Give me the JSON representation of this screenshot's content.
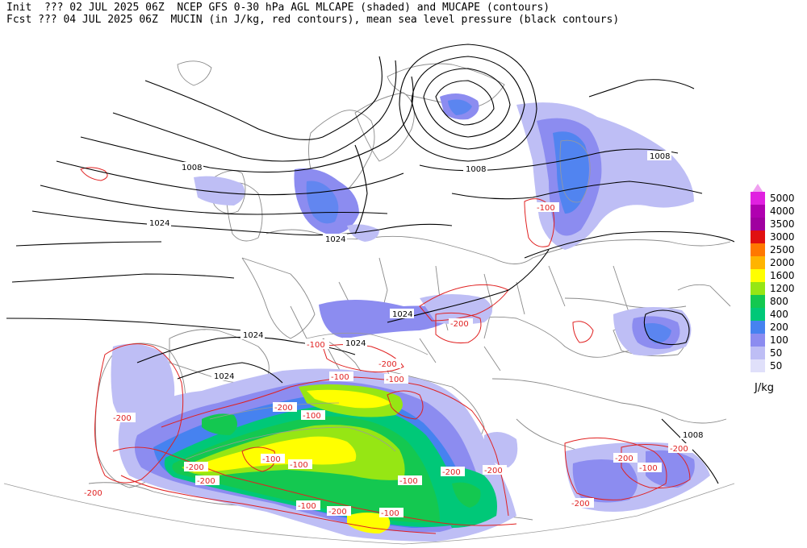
{
  "header": {
    "line1": "Init  ??? 02 JUL 2025 06Z  NCEP GFS 0-30 hPa AGL MLCAPE (shaded) and MUCAPE (contours)",
    "line2": "Fcst ??? 04 JUL 2025 06Z  MUCIN (in J/kg, red contours), mean sea level pressure (black contours)"
  },
  "legend": {
    "units": "J/kg",
    "items": [
      {
        "label": "5000",
        "color": "#f0a0f0"
      },
      {
        "label": "4000",
        "color": "#e020e0"
      },
      {
        "label": "3500",
        "color": "#a000a0"
      },
      {
        "label": "3000",
        "color": "#e01010"
      },
      {
        "label": "2500",
        "color": "#ff7800"
      },
      {
        "label": "2000",
        "color": "#ffb400"
      },
      {
        "label": "1600",
        "color": "#ffff00"
      },
      {
        "label": "1200",
        "color": "#96e614"
      },
      {
        "label": "800",
        "color": "#14c850"
      },
      {
        "label": "400",
        "color": "#00c878"
      },
      {
        "label": "200",
        "color": "#4682f0"
      },
      {
        "label": "100",
        "color": "#8c8cf0"
      },
      {
        "label": "50",
        "color": "#bebef5"
      }
    ],
    "extra_bottom": {
      "label": "50",
      "color": "#e0e0fa"
    }
  },
  "pressure_labels": [
    {
      "text": "1008"
    },
    {
      "text": "1024"
    },
    {
      "text": "1024"
    },
    {
      "text": "1008"
    },
    {
      "text": "1008"
    },
    {
      "text": "1024"
    },
    {
      "text": "1024"
    },
    {
      "text": "1024"
    },
    {
      "text": "1024"
    },
    {
      "text": "1008"
    }
  ],
  "cin_labels": [
    {
      "text": "-100"
    },
    {
      "text": "-200"
    },
    {
      "text": "-100"
    },
    {
      "text": "-200"
    },
    {
      "text": "-100"
    },
    {
      "text": "-100"
    },
    {
      "text": "-200"
    },
    {
      "text": "-200"
    },
    {
      "text": "-100"
    },
    {
      "text": "-200"
    },
    {
      "text": "-200"
    },
    {
      "text": "-100"
    },
    {
      "text": "-100"
    },
    {
      "text": "-100"
    },
    {
      "text": "-200"
    },
    {
      "text": "-200"
    },
    {
      "text": "-200"
    },
    {
      "text": "-100"
    },
    {
      "text": "-200"
    },
    {
      "text": "-100"
    },
    {
      "text": "-200"
    },
    {
      "text": "-200"
    },
    {
      "text": "-100"
    },
    {
      "text": "-200"
    }
  ]
}
